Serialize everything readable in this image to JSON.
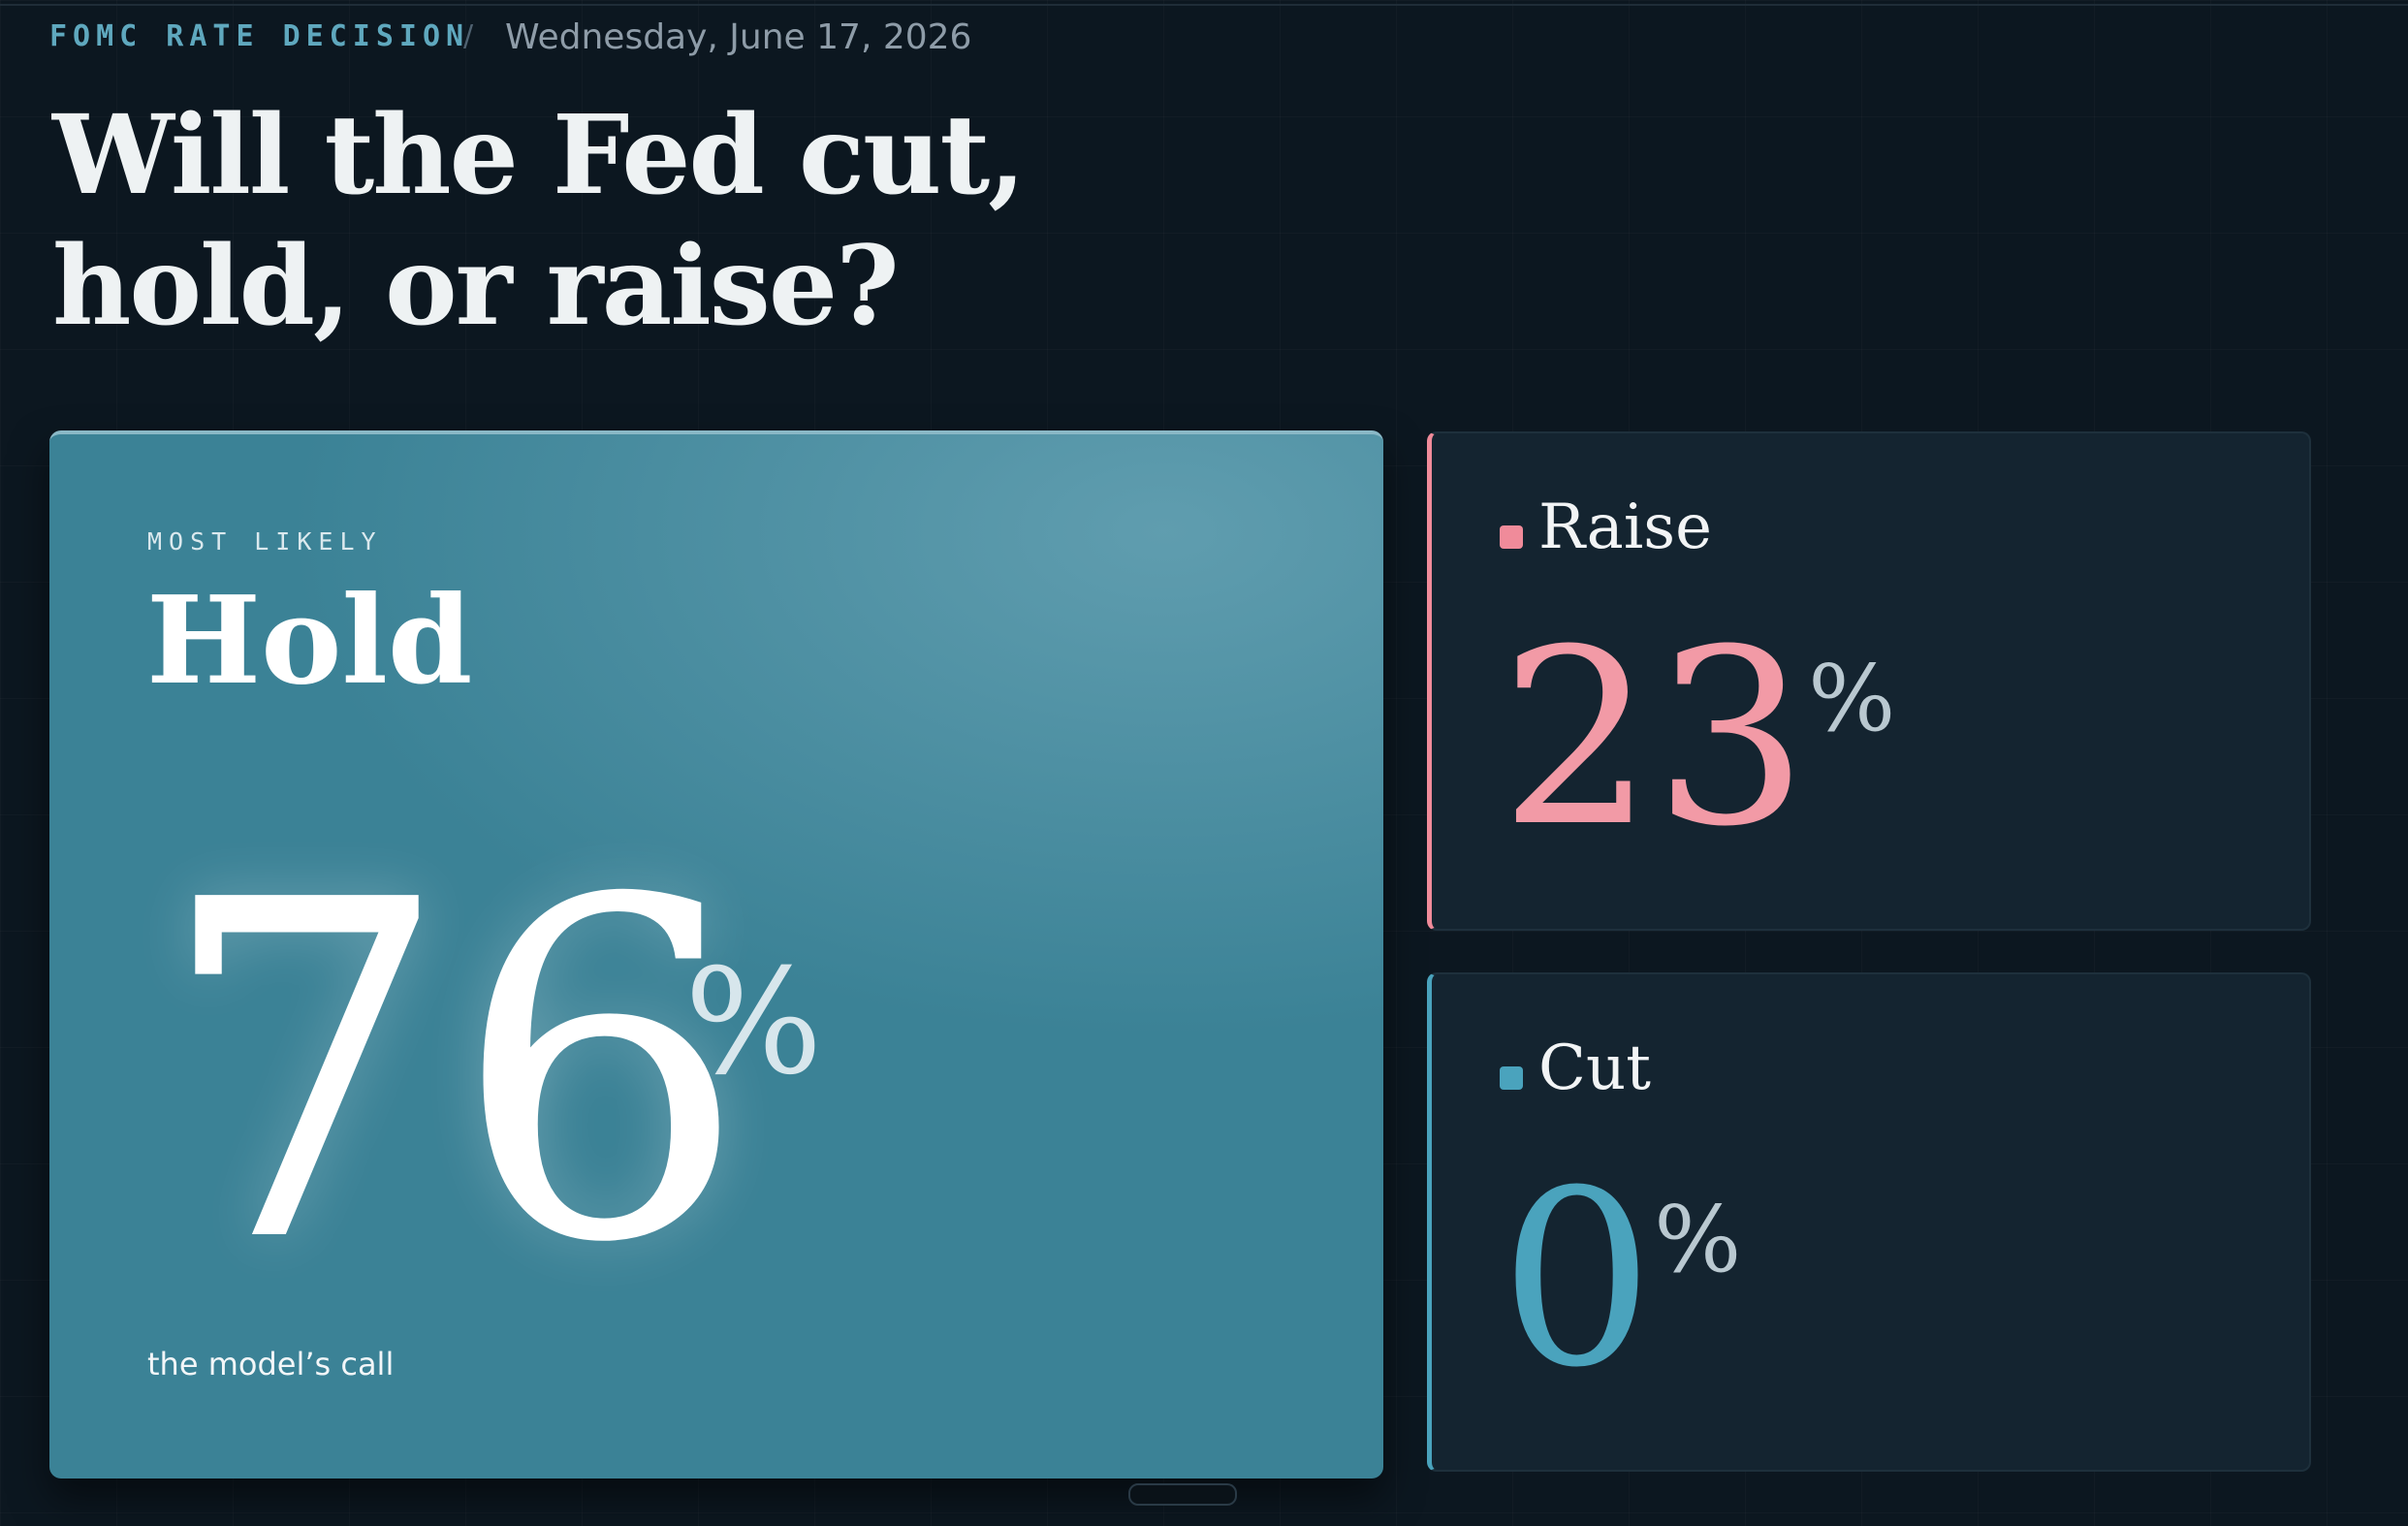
{
  "header": {
    "eyebrow": "FOMC RATE DECISION",
    "separator": "/",
    "date": "Wednesday, June 17, 2026",
    "title": [
      "Will the Fed cut,",
      "hold, or raise?"
    ]
  },
  "featured": {
    "kicker": "MOST LIKELY",
    "label": "Hold",
    "value": 76,
    "unit": "%",
    "caption": "the model’s call"
  },
  "outcomes": [
    {
      "label": "Raise",
      "value": 23,
      "unit": "%"
    },
    {
      "label": "Cut",
      "value": 0,
      "unit": "%"
    }
  ]
}
